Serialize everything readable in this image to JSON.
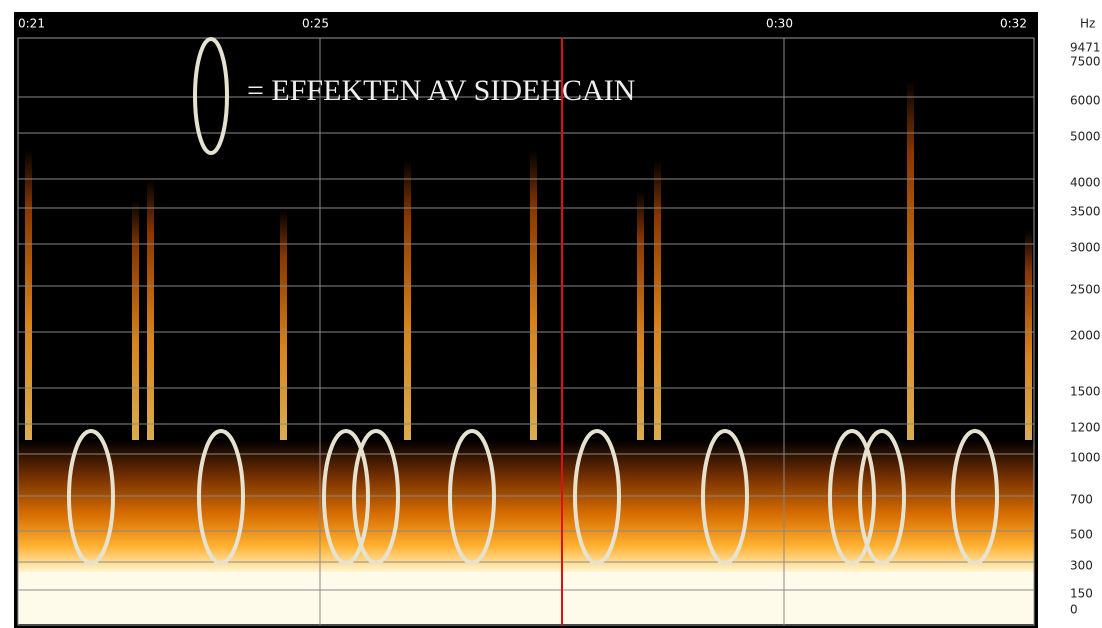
{
  "time_labels": [
    "0:21",
    "0:25",
    "0:30",
    "0:32"
  ],
  "frequency_unit": "Hz",
  "frequency_labels": [
    "9471",
    "7500",
    "6000",
    "5000",
    "4000",
    "3500",
    "3000",
    "2500",
    "2000",
    "1500",
    "1200",
    "1000",
    "700",
    "500",
    "300",
    "150",
    "0"
  ],
  "legend_text": "= EFFEKTEN AV SIDEHCAIN"
}
